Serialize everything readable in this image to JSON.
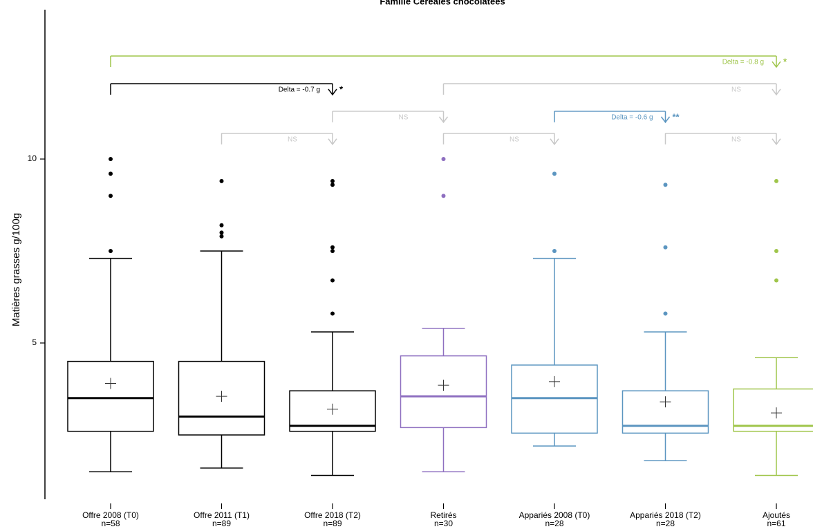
{
  "chart_data": {
    "type": "boxplot",
    "title": "Famille Céréales chocolatées",
    "ylabel": "Matières grasses g/100g",
    "ylim": [
      0.4,
      13.2
    ],
    "yticks": [
      5,
      10
    ],
    "grid": false,
    "colors": {
      "black": "#000000",
      "purple": "#8e6fc0",
      "blue": "#5b95c0",
      "green": "#9fc54a",
      "gray": "#c8c8c8"
    },
    "boxes": [
      {
        "label": "Offre 2008 (T0)",
        "n": "n=58",
        "color": "black",
        "whisker_low": 1.5,
        "q1": 2.6,
        "median": 3.5,
        "q3": 4.5,
        "whisker_high": 7.3,
        "mean": 3.9,
        "outliers": [
          7.5,
          9.0,
          9.6,
          10.0
        ]
      },
      {
        "label": "Offre 2011 (T1)",
        "n": "n=89",
        "color": "black",
        "whisker_low": 1.6,
        "q1": 2.5,
        "median": 3.0,
        "q3": 4.5,
        "whisker_high": 7.5,
        "mean": 3.55,
        "outliers": [
          7.9,
          8.0,
          8.2,
          9.4
        ]
      },
      {
        "label": "Offre 2018 (T2)",
        "n": "n=89",
        "color": "black",
        "whisker_low": 1.4,
        "q1": 2.6,
        "median": 2.75,
        "q3": 3.7,
        "whisker_high": 5.3,
        "mean": 3.2,
        "outliers": [
          5.8,
          6.7,
          7.5,
          7.6,
          9.3,
          9.4
        ]
      },
      {
        "label": "Retirés",
        "n": "n=30",
        "color": "purple",
        "whisker_low": 1.5,
        "q1": 2.7,
        "median": 3.55,
        "q3": 4.65,
        "whisker_high": 5.4,
        "mean": 3.85,
        "outliers": [
          9.0,
          10.0
        ]
      },
      {
        "label": "Appariés 2008 (T0)",
        "n": "n=28",
        "color": "blue",
        "whisker_low": 2.2,
        "q1": 2.55,
        "median": 3.5,
        "q3": 4.4,
        "whisker_high": 7.3,
        "mean": 3.95,
        "outliers": [
          7.5,
          9.6
        ]
      },
      {
        "label": "Appariés 2018 (T2)",
        "n": "n=28",
        "color": "blue",
        "whisker_low": 1.8,
        "q1": 2.55,
        "median": 2.75,
        "q3": 3.7,
        "whisker_high": 5.3,
        "mean": 3.4,
        "outliers": [
          5.8,
          7.6,
          9.3
        ]
      },
      {
        "label": "Ajoutés",
        "n": "n=61",
        "color": "green",
        "whisker_low": 1.4,
        "q1": 2.6,
        "median": 2.75,
        "q3": 3.75,
        "whisker_high": 4.6,
        "mean": 3.1,
        "outliers": [
          6.7,
          7.5,
          9.4
        ]
      }
    ],
    "comparisons": [
      {
        "from": 0,
        "to": 6,
        "y": 12.8,
        "label": "Delta = -0.8 g",
        "sig": "*",
        "color": "green"
      },
      {
        "from": 0,
        "to": 2,
        "y": 12.05,
        "label": "Delta = -0.7 g",
        "sig": "*",
        "color": "black"
      },
      {
        "from": 3,
        "to": 6,
        "y": 12.05,
        "label": "NS",
        "sig": "",
        "color": "gray"
      },
      {
        "from": 2,
        "to": 3,
        "y": 11.3,
        "label": "NS",
        "sig": "",
        "color": "gray"
      },
      {
        "from": 4,
        "to": 5,
        "y": 11.3,
        "label": "Delta = -0.6 g",
        "sig": "**",
        "color": "blue"
      },
      {
        "from": 1,
        "to": 2,
        "y": 10.7,
        "label": "NS",
        "sig": "",
        "color": "gray"
      },
      {
        "from": 3,
        "to": 4,
        "y": 10.7,
        "label": "NS",
        "sig": "",
        "color": "gray"
      },
      {
        "from": 5,
        "to": 6,
        "y": 10.7,
        "label": "NS",
        "sig": "",
        "color": "gray"
      }
    ]
  }
}
